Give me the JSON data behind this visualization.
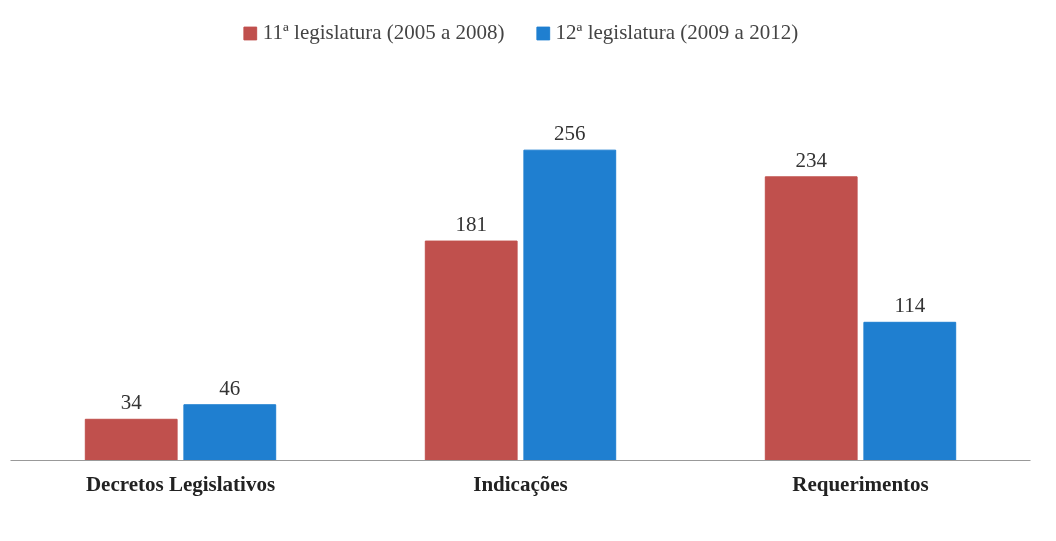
{
  "chart_data": {
    "type": "bar",
    "categories": [
      "Decretos Legislativos",
      "Indicações",
      "Requerimentos"
    ],
    "series": [
      {
        "name": "11ª legislatura (2005 a 2008)",
        "color": "#c0504d",
        "values": [
          34,
          181,
          234
        ]
      },
      {
        "name": "12ª legislatura (2009 a 2012)",
        "color": "#1f7fd0",
        "values": [
          46,
          256,
          114
        ]
      }
    ],
    "data_labels": true,
    "legend": "top",
    "grid": false
  }
}
